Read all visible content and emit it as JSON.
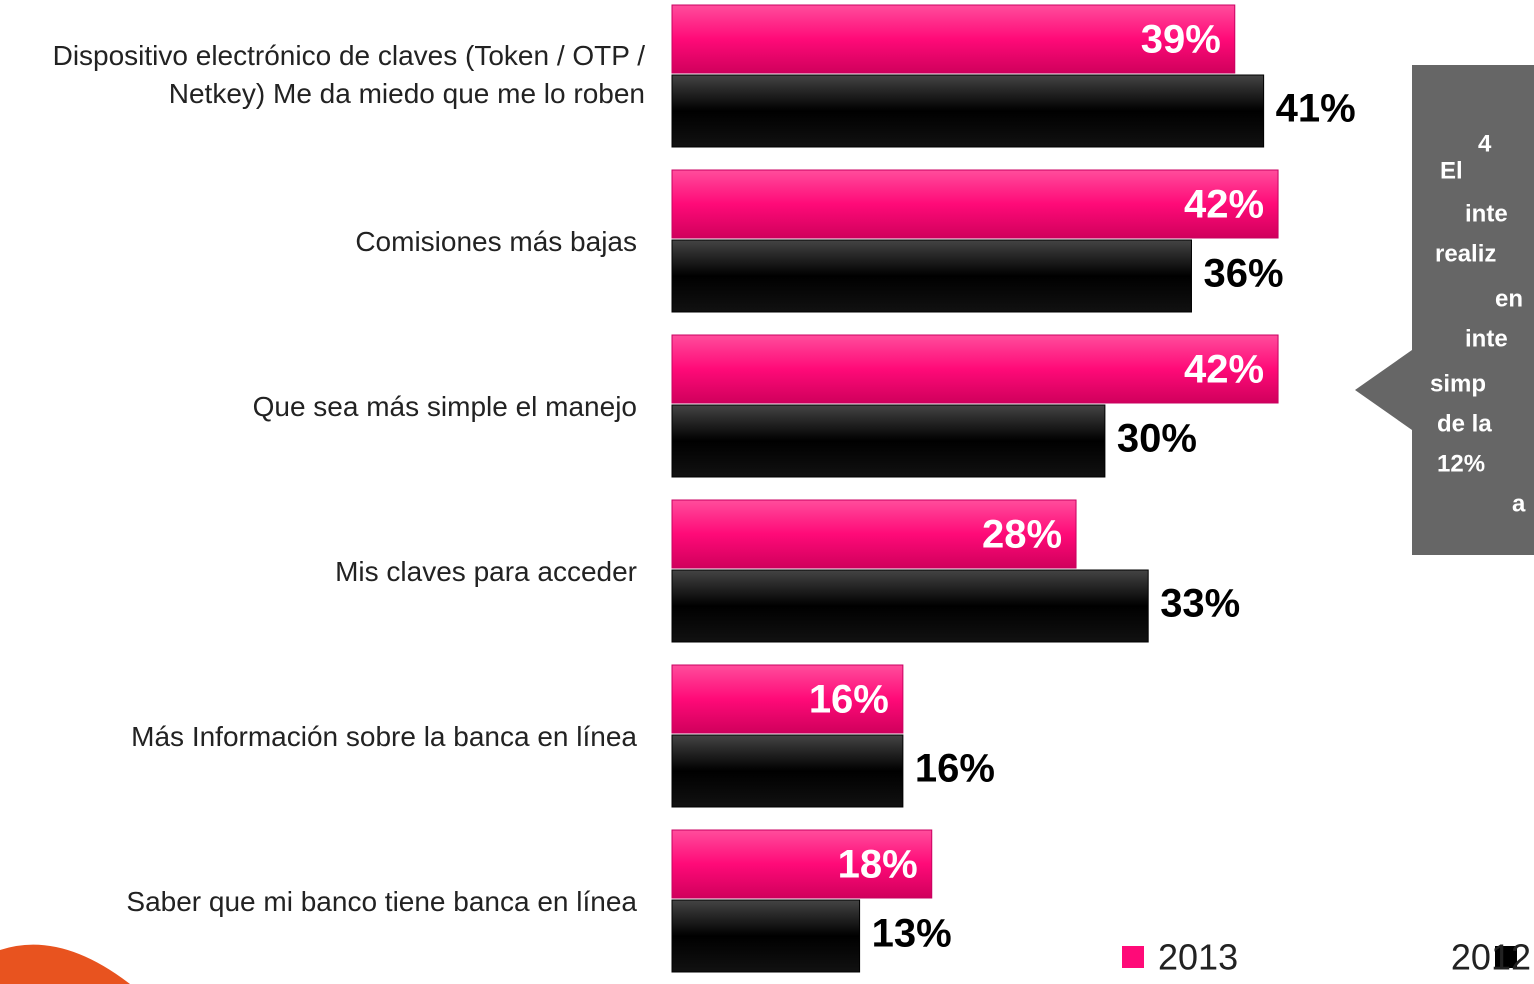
{
  "chart_data": {
    "type": "bar",
    "orientation": "horizontal",
    "categories": [
      "Dispositivo electrónico de claves (Token / OTP / Netkey) Me da miedo que me lo roben",
      "Comisiones más bajas",
      "Que sea más simple el manejo",
      "Mis claves para acceder",
      "Más Información sobre la banca en línea",
      "Saber que mi banco tiene banca en línea"
    ],
    "series": [
      {
        "name": "2013",
        "color": "#ff0a78",
        "values": [
          39,
          42,
          42,
          28,
          16,
          18
        ],
        "value_labels": [
          "39%",
          "42%",
          "42%",
          "28%",
          "16%",
          "18%"
        ]
      },
      {
        "name": "2012",
        "color": "#000000",
        "values": [
          41,
          36,
          30,
          33,
          16,
          13
        ],
        "value_labels": [
          "41%",
          "36%",
          "30%",
          "33%",
          "16%",
          "13%"
        ]
      }
    ],
    "callout": [
      "El",
      "4",
      "inte",
      "realiz",
      "en",
      "inte",
      "simp",
      "de la",
      "12%",
      "a"
    ]
  }
}
